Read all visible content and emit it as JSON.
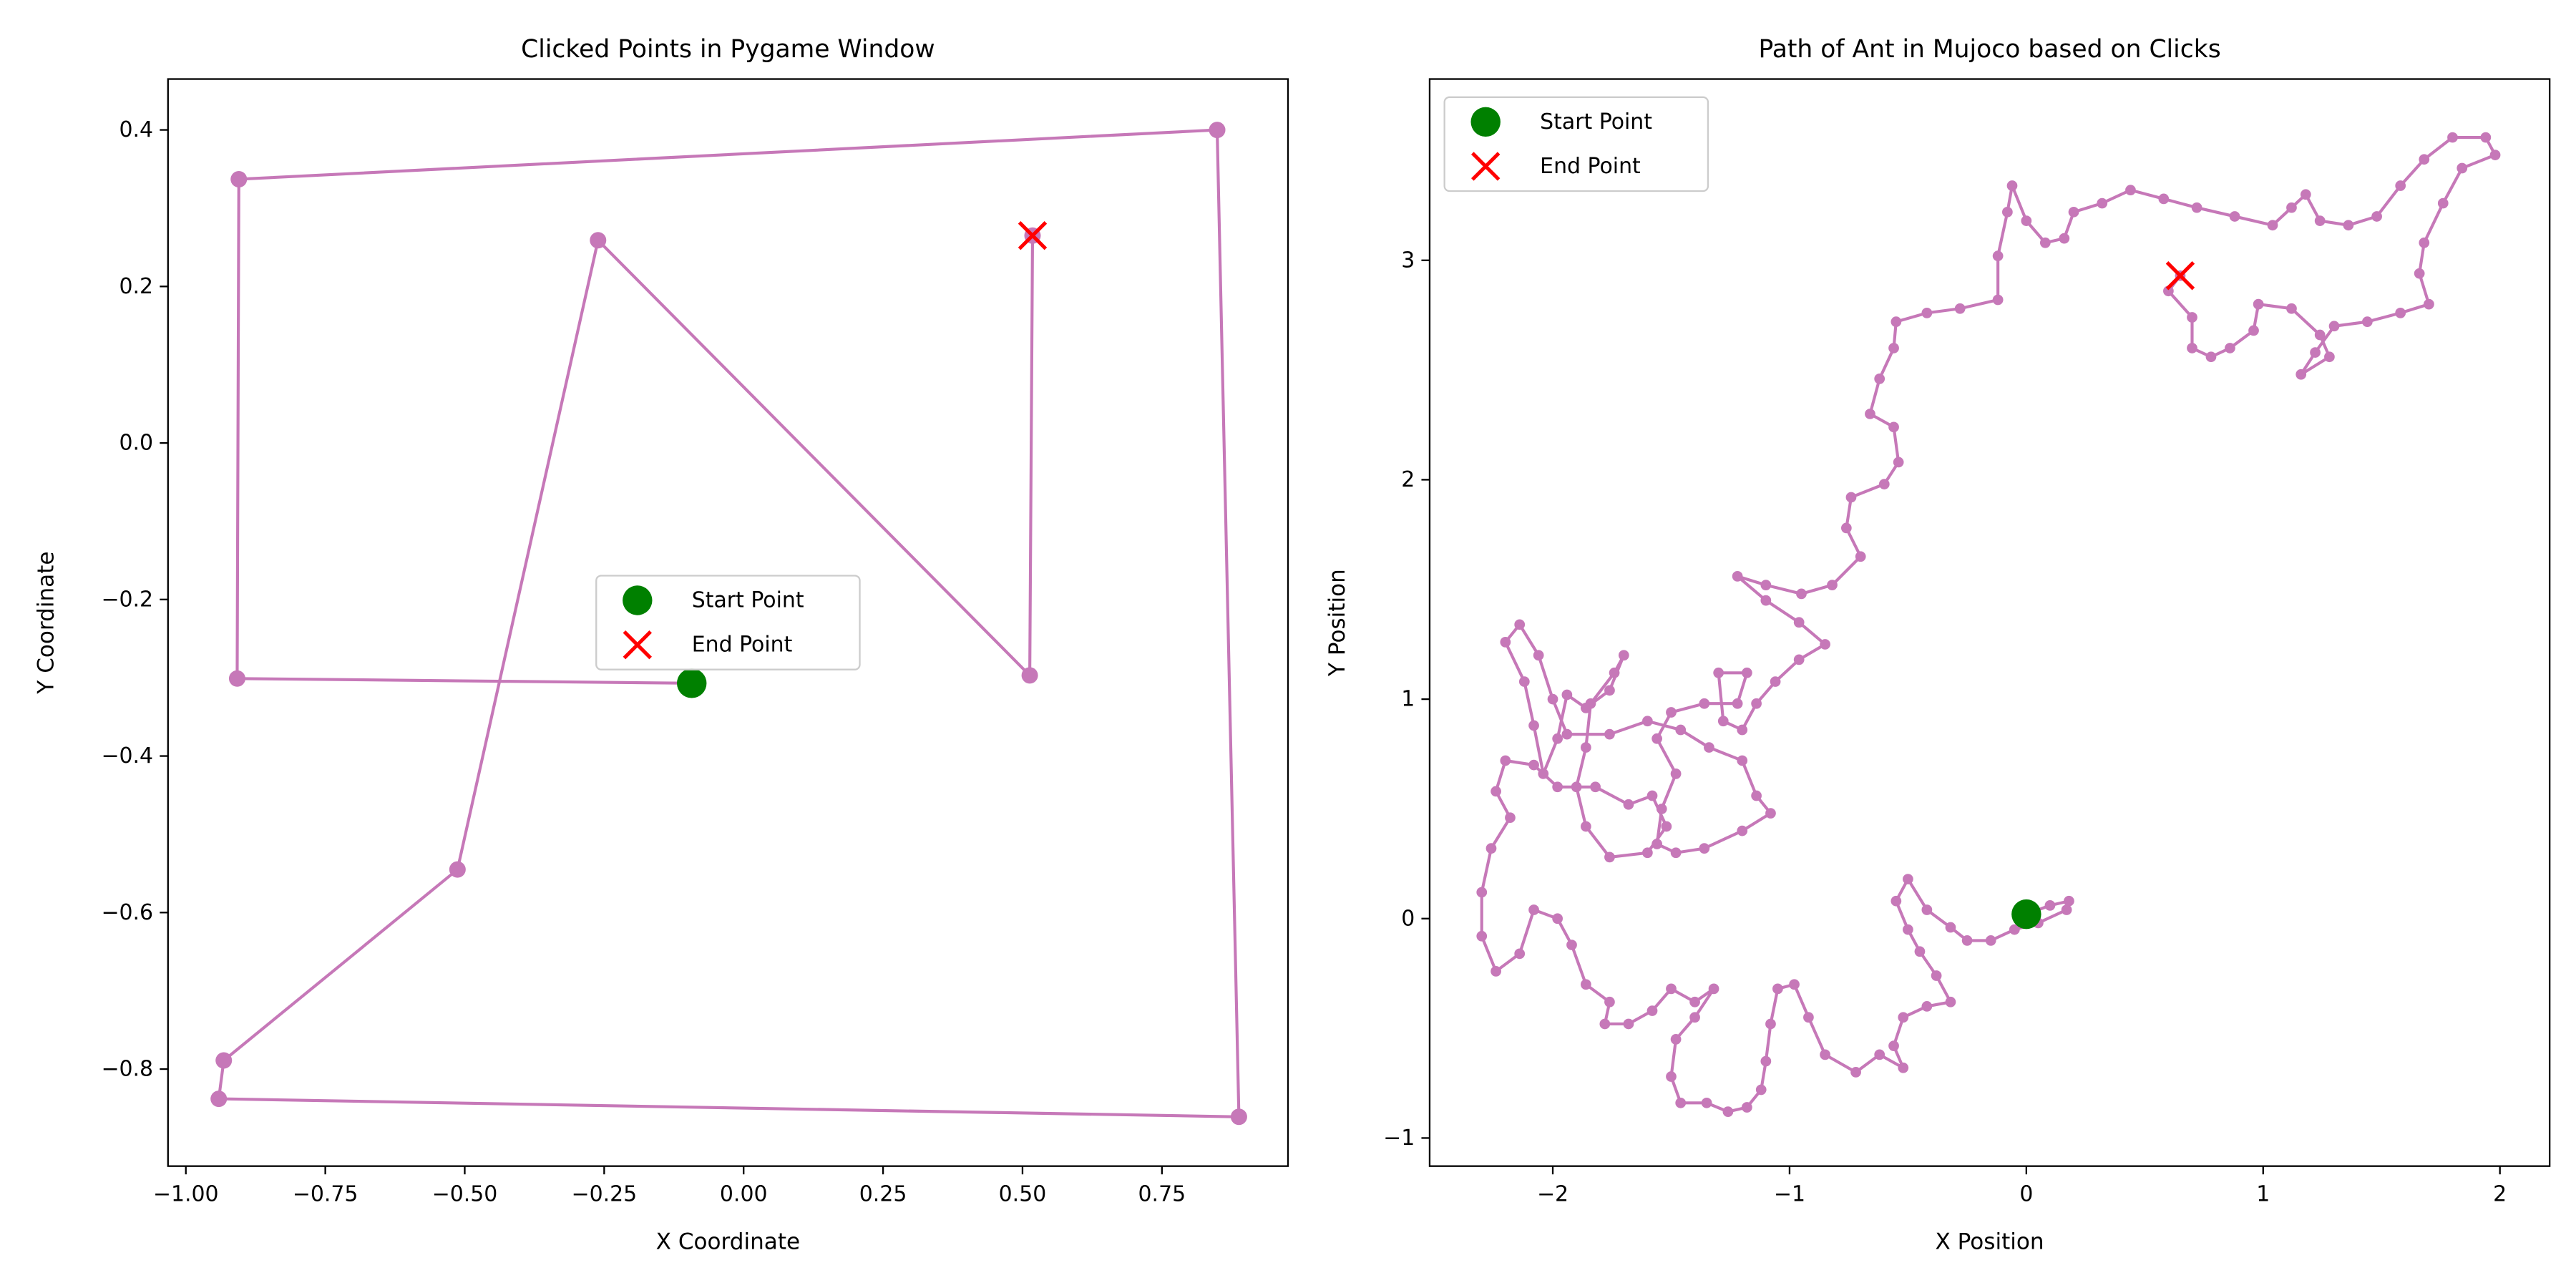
{
  "chart_data": [
    {
      "type": "line",
      "title": "Clicked Points in Pygame Window",
      "xlabel": "X Coordinate",
      "ylabel": "Y Coordinate",
      "x": [
        -0.093,
        -0.908,
        -0.905,
        0.849,
        0.888,
        -0.941,
        -0.932,
        -0.513,
        -0.261,
        0.513,
        0.518
      ],
      "values": [
        -0.307,
        -0.301,
        0.337,
        0.4,
        -0.861,
        -0.838,
        -0.789,
        -0.545,
        0.259,
        -0.297,
        0.265
      ],
      "color": "#c678b8",
      "xlim": [
        -1.032,
        0.976
      ],
      "ylim": [
        -0.924,
        0.465
      ],
      "xticks": [
        {
          "value": -1,
          "label": "−1.00"
        },
        {
          "value": -0.75,
          "label": "−0.75"
        },
        {
          "value": -0.5,
          "label": "−0.50"
        },
        {
          "value": -0.25,
          "label": "−0.25"
        },
        {
          "value": 0,
          "label": "0.00"
        },
        {
          "value": 0.25,
          "label": "0.25"
        },
        {
          "value": 0.5,
          "label": "0.50"
        },
        {
          "value": 0.75,
          "label": "0.75"
        }
      ],
      "yticks": [
        {
          "value": -0.8,
          "label": "−0.8"
        },
        {
          "value": -0.6,
          "label": "−0.6"
        },
        {
          "value": -0.4,
          "label": "−0.4"
        },
        {
          "value": -0.2,
          "label": "−0.2"
        },
        {
          "value": 0,
          "label": "0.0"
        },
        0.2,
        0.4
      ],
      "legend": "center",
      "start": {
        "name": "Start Point",
        "color": "green",
        "x": -0.093,
        "y": -0.307
      },
      "end": {
        "name": "End Point",
        "color": "red",
        "x": 0.518,
        "y": 0.265
      }
    },
    {
      "type": "line",
      "title": "Path of Ant in Mujoco based on Clicks",
      "xlabel": "X Position",
      "ylabel": "Y Position",
      "x": [
        0,
        0.1,
        0.18,
        0.17,
        0.05,
        -0.05,
        -0.15,
        -0.25,
        -0.32,
        -0.42,
        -0.5,
        -0.55,
        -0.5,
        -0.45,
        -0.38,
        -0.32,
        -0.42,
        -0.52,
        -0.56,
        -0.52,
        -0.62,
        -0.72,
        -0.85,
        -0.92,
        -0.98,
        -1.05,
        -1.08,
        -1.1,
        -1.12,
        -1.18,
        -1.26,
        -1.35,
        -1.46,
        -1.5,
        -1.48,
        -1.4,
        -1.32,
        -1.4,
        -1.5,
        -1.58,
        -1.68,
        -1.78,
        -1.76,
        -1.86,
        -1.92,
        -1.98,
        -2.08,
        -2.14,
        -2.24,
        -2.3,
        -2.3,
        -2.26,
        -2.18,
        -2.24,
        -2.2,
        -2.08,
        -1.98,
        -1.82,
        -1.68,
        -1.58,
        -1.52,
        -1.6,
        -1.76,
        -1.86,
        -1.9,
        -1.86,
        -1.84,
        -1.74,
        -1.7,
        -1.76,
        -1.86,
        -1.94,
        -1.98,
        -2.04,
        -2.08,
        -2.12,
        -2.2,
        -2.14,
        -2.06,
        -2,
        -1.94,
        -1.76,
        -1.6,
        -1.46,
        -1.34,
        -1.2,
        -1.14,
        -1.08,
        -1.2,
        -1.36,
        -1.48,
        -1.56,
        -1.54,
        -1.48,
        -1.56,
        -1.5,
        -1.36,
        -1.22,
        -1.18,
        -1.3,
        -1.28,
        -1.2,
        -1.14,
        -1.06,
        -0.96,
        -0.85,
        -0.96,
        -1.1,
        -1.22,
        -1.1,
        -0.95,
        -0.82,
        -0.7,
        -0.76,
        -0.74,
        -0.6,
        -0.54,
        -0.56,
        -0.66,
        -0.62,
        -0.56,
        -0.55,
        -0.42,
        -0.28,
        -0.12,
        -0.12,
        -0.08,
        -0.06,
        0,
        0.08,
        0.16,
        0.2,
        0.32,
        0.44,
        0.58,
        0.72,
        0.88,
        1.04,
        1.12,
        1.18,
        1.24,
        1.36,
        1.48,
        1.58,
        1.68,
        1.8,
        1.94,
        1.98,
        1.84,
        1.76,
        1.68,
        1.66,
        1.7,
        1.58,
        1.44,
        1.3,
        1.22,
        1.16,
        1.28,
        1.24,
        1.12,
        0.98,
        0.96,
        0.86,
        0.78,
        0.7,
        0.7,
        0.6,
        0.65
      ],
      "values": [
        0.02,
        0.06,
        0.08,
        0.04,
        -0.02,
        -0.05,
        -0.1,
        -0.1,
        -0.04,
        0.04,
        0.18,
        0.08,
        -0.05,
        -0.15,
        -0.26,
        -0.38,
        -0.4,
        -0.45,
        -0.58,
        -0.68,
        -0.62,
        -0.7,
        -0.62,
        -0.45,
        -0.3,
        -0.32,
        -0.48,
        -0.65,
        -0.78,
        -0.86,
        -0.88,
        -0.84,
        -0.84,
        -0.72,
        -0.55,
        -0.45,
        -0.32,
        -0.38,
        -0.32,
        -0.42,
        -0.48,
        -0.48,
        -0.38,
        -0.3,
        -0.12,
        0,
        0.04,
        -0.16,
        -0.24,
        -0.08,
        0.12,
        0.32,
        0.46,
        0.58,
        0.72,
        0.7,
        0.6,
        0.6,
        0.52,
        0.56,
        0.42,
        0.3,
        0.28,
        0.42,
        0.6,
        0.78,
        0.98,
        1.12,
        1.2,
        1.04,
        0.96,
        1.02,
        0.82,
        0.66,
        0.88,
        1.08,
        1.26,
        1.34,
        1.2,
        1,
        0.84,
        0.84,
        0.9,
        0.86,
        0.78,
        0.72,
        0.56,
        0.48,
        0.4,
        0.32,
        0.3,
        0.34,
        0.5,
        0.66,
        0.82,
        0.94,
        0.98,
        0.98,
        1.12,
        1.12,
        0.9,
        0.86,
        0.98,
        1.08,
        1.18,
        1.25,
        1.35,
        1.45,
        1.56,
        1.52,
        1.48,
        1.52,
        1.65,
        1.78,
        1.92,
        1.98,
        2.08,
        2.24,
        2.3,
        2.46,
        2.6,
        2.72,
        2.76,
        2.78,
        2.82,
        3.02,
        3.22,
        3.34,
        3.18,
        3.08,
        3.1,
        3.22,
        3.26,
        3.32,
        3.28,
        3.24,
        3.2,
        3.16,
        3.24,
        3.3,
        3.18,
        3.16,
        3.2,
        3.34,
        3.46,
        3.56,
        3.56,
        3.48,
        3.42,
        3.26,
        3.08,
        2.94,
        2.8,
        2.76,
        2.72,
        2.7,
        2.58,
        2.48,
        2.56,
        2.66,
        2.78,
        2.8,
        2.68,
        2.6,
        2.56,
        2.6,
        2.74,
        2.86,
        2.93
      ],
      "color": "#c678b8",
      "xlim": [
        -2.52,
        2.21
      ],
      "ylim": [
        -1.128,
        3.826
      ],
      "xticks": [
        {
          "value": -2,
          "label": "−2"
        },
        {
          "value": -1,
          "label": "−1"
        },
        0,
        1,
        2
      ],
      "yticks": [
        {
          "value": -1,
          "label": "−1"
        },
        0,
        1,
        2,
        3
      ],
      "legend": "upper left",
      "start": {
        "name": "Start Point",
        "color": "green",
        "x": 0,
        "y": 0.02
      },
      "end": {
        "name": "End Point",
        "color": "red",
        "x": 0.65,
        "y": 2.93
      }
    }
  ]
}
